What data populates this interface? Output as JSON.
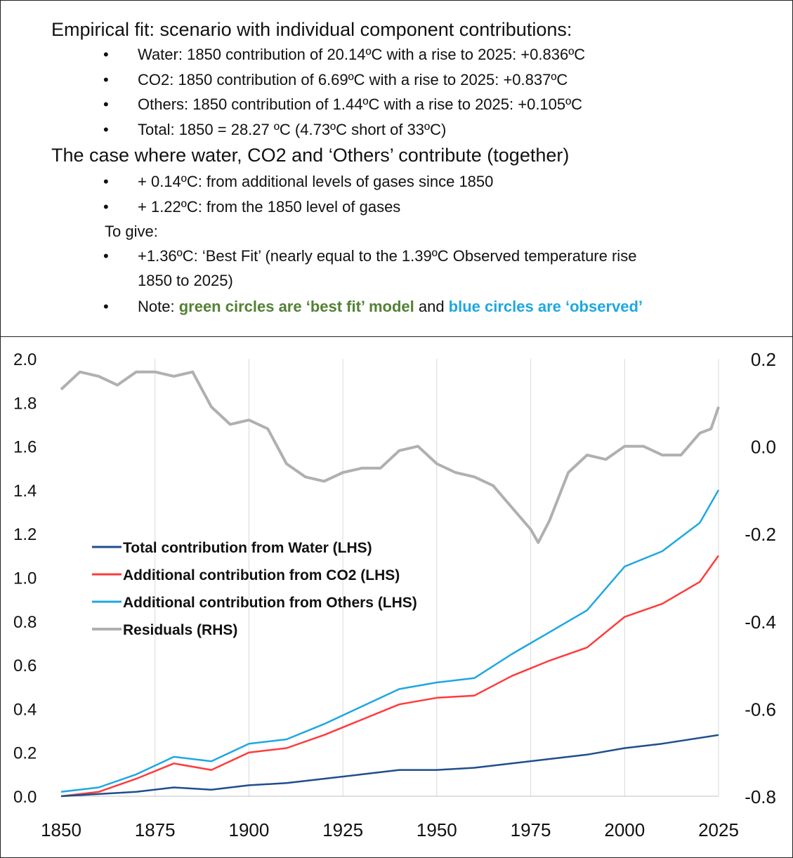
{
  "text": {
    "heading1": "Empirical fit: scenario with individual component contributions:",
    "bullets1": [
      "Water: 1850 contribution of 20.14ºC with a rise to 2025: +0.836ºC",
      "CO2: 1850 contribution of 6.69ºC with a rise to 2025: +0.837ºC",
      "Others: 1850 contribution of 1.44ºC with a rise to 2025: +0.105ºC",
      "Total: 1850 = 28.27 ºC (4.73ºC short of 33ºC)"
    ],
    "heading2": "The case where water, CO2 and ‘Others’ contribute (together)",
    "bullets2": [
      "+ 0.14ºC: from additional levels of gases since 1850",
      "+ 1.22ºC: from the 1850 level of gases"
    ],
    "togive": "To give:",
    "bestfit_line1": "+1.36ºC: ‘Best Fit’ (nearly equal to the 1.39ºC Observed temperature rise",
    "bestfit_line2": "1850 to 2025)",
    "note_prefix": "Note: ",
    "note_green": "green circles are ‘best fit’ model",
    "note_mid": " and ",
    "note_blue": "blue circles are ‘observed’",
    "bullet_glyph": "•"
  },
  "chart_data": {
    "type": "line",
    "x_ticks": [
      "1850",
      "1875",
      "1900",
      "1925",
      "1950",
      "1975",
      "2000",
      "2025"
    ],
    "xlim": [
      1850,
      2025
    ],
    "ylim_left": [
      0.0,
      2.0
    ],
    "y_ticks_left": [
      "0.0",
      "0.2",
      "0.4",
      "0.6",
      "0.8",
      "1.0",
      "1.2",
      "1.4",
      "1.6",
      "1.8",
      "2.0"
    ],
    "ylim_right": [
      -0.8,
      0.2
    ],
    "y_ticks_right": [
      "-0.8",
      "-0.6",
      "-0.4",
      "-0.2",
      "0.0",
      "0.2"
    ],
    "grid": "vertical",
    "legend_position": "center-left",
    "series": [
      {
        "name": "Total contribution from Water (LHS)",
        "axis": "left",
        "color": "#1f4e8c",
        "x": [
          1850,
          1860,
          1870,
          1880,
          1890,
          1900,
          1910,
          1920,
          1930,
          1940,
          1950,
          1960,
          1970,
          1980,
          1990,
          2000,
          2010,
          2025
        ],
        "values": [
          0.0,
          0.01,
          0.02,
          0.04,
          0.03,
          0.05,
          0.06,
          0.08,
          0.1,
          0.12,
          0.12,
          0.13,
          0.15,
          0.17,
          0.19,
          0.22,
          0.24,
          0.28
        ]
      },
      {
        "name": "Additional contribution from CO2  (LHS)",
        "axis": "left",
        "color": "#ff3b3b",
        "x": [
          1850,
          1860,
          1870,
          1880,
          1890,
          1900,
          1910,
          1920,
          1930,
          1940,
          1950,
          1960,
          1970,
          1980,
          1990,
          2000,
          2010,
          2020,
          2025
        ],
        "values": [
          0.0,
          0.02,
          0.08,
          0.15,
          0.12,
          0.2,
          0.22,
          0.28,
          0.35,
          0.42,
          0.45,
          0.46,
          0.55,
          0.62,
          0.68,
          0.82,
          0.88,
          0.98,
          1.1
        ]
      },
      {
        "name": "Additional contribution from Others (LHS)",
        "axis": "left",
        "color": "#1ea7e1",
        "x": [
          1850,
          1860,
          1870,
          1880,
          1890,
          1900,
          1910,
          1920,
          1930,
          1940,
          1950,
          1960,
          1970,
          1980,
          1990,
          2000,
          2010,
          2020,
          2025
        ],
        "values": [
          0.02,
          0.04,
          0.1,
          0.18,
          0.16,
          0.24,
          0.26,
          0.33,
          0.41,
          0.49,
          0.52,
          0.54,
          0.65,
          0.75,
          0.85,
          1.05,
          1.12,
          1.25,
          1.4
        ]
      },
      {
        "name": "Residuals (RHS)",
        "axis": "right",
        "color": "#b0b0b0",
        "x": [
          1850,
          1855,
          1860,
          1865,
          1870,
          1875,
          1880,
          1885,
          1890,
          1895,
          1900,
          1905,
          1910,
          1915,
          1920,
          1925,
          1930,
          1935,
          1940,
          1945,
          1950,
          1955,
          1960,
          1965,
          1970,
          1975,
          1977,
          1980,
          1985,
          1990,
          1995,
          2000,
          2005,
          2010,
          2015,
          2020,
          2023,
          2025
        ],
        "values": [
          0.13,
          0.17,
          0.16,
          0.14,
          0.17,
          0.17,
          0.16,
          0.17,
          0.09,
          0.05,
          0.06,
          0.04,
          -0.04,
          -0.07,
          -0.08,
          -0.06,
          -0.05,
          -0.05,
          -0.01,
          0.0,
          -0.04,
          -0.06,
          -0.07,
          -0.09,
          -0.14,
          -0.19,
          -0.22,
          -0.17,
          -0.06,
          -0.02,
          -0.03,
          0.0,
          0.0,
          -0.02,
          -0.02,
          0.03,
          0.04,
          0.09
        ]
      }
    ]
  }
}
